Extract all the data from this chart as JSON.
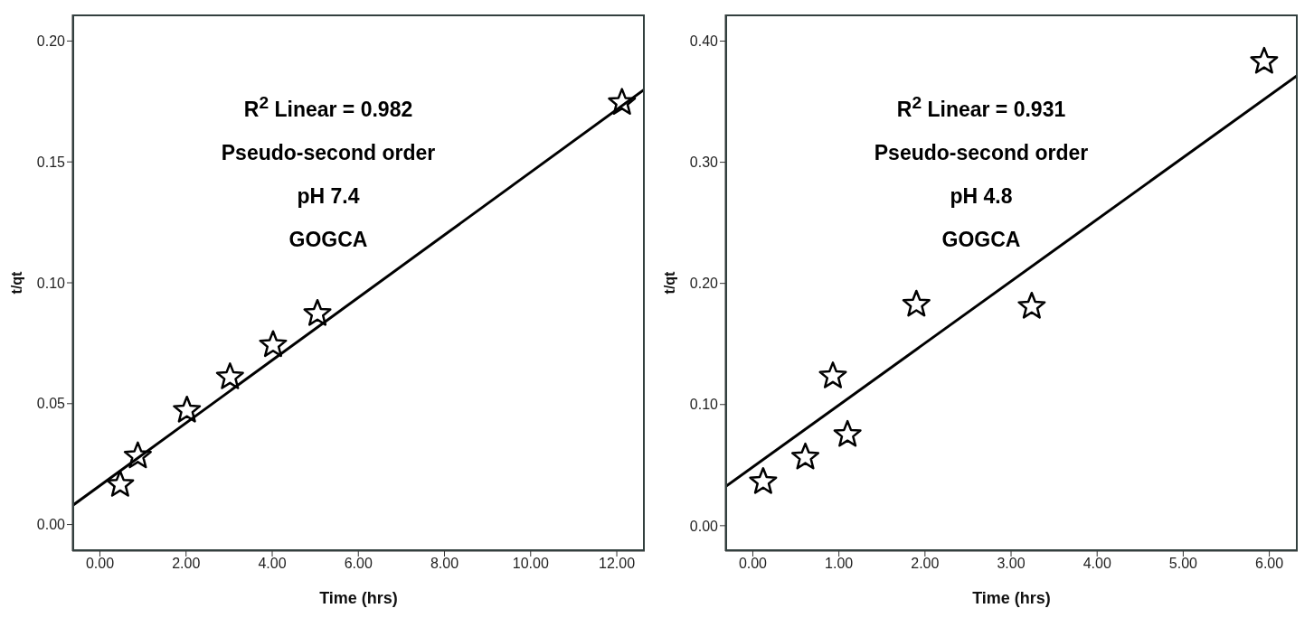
{
  "chart_data": [
    {
      "type": "scatter",
      "xlabel": "Time (hrs)",
      "ylabel": "t/qt",
      "xlim": [
        -0.64,
        12.65
      ],
      "xticks": [
        {
          "value": 0,
          "label": "0.00"
        },
        {
          "value": 2,
          "label": "2.00"
        },
        {
          "value": 4,
          "label": "4.00"
        },
        {
          "value": 6,
          "label": "6.00"
        },
        {
          "value": 8,
          "label": "8.00"
        },
        {
          "value": 10,
          "label": "10.00"
        },
        {
          "value": 12,
          "label": "12.00"
        }
      ],
      "ylim": [
        -0.011,
        0.211
      ],
      "yticks": [
        {
          "value": 0,
          "label": "0.00"
        },
        {
          "value": 0.05,
          "label": "0.05"
        },
        {
          "value": 0.1,
          "label": "0.10"
        },
        {
          "value": 0.15,
          "label": "0.15"
        },
        {
          "value": 0.2,
          "label": "0.20"
        }
      ],
      "annotations": [
        "R$^{2}$ Linear = 0.982",
        "Pseudo-second order",
        "pH 7.4",
        "GOGCA"
      ],
      "series": [
        {
          "type": "scatter",
          "marker": "star",
          "color": "#000000",
          "x": [
            0.47,
            0.88,
            2.02,
            3.02,
            4.02,
            5.05,
            12.12
          ],
          "values": [
            0.0165,
            0.0283,
            0.0472,
            0.061,
            0.0743,
            0.0872,
            0.1745
          ]
        },
        {
          "type": "line",
          "marker": "none",
          "color": "#000000",
          "x": [
            -0.64,
            12.65
          ],
          "values": [
            0.0078,
            0.1801
          ]
        }
      ]
    },
    {
      "type": "scatter",
      "xlabel": "Time (hrs)",
      "ylabel": "t/qt",
      "xlim": [
        -0.32,
        6.33
      ],
      "xticks": [
        {
          "value": 0,
          "label": "0.00"
        },
        {
          "value": 1,
          "label": "1.00"
        },
        {
          "value": 2,
          "label": "2.00"
        },
        {
          "value": 3,
          "label": "3.00"
        },
        {
          "value": 4,
          "label": "4.00"
        },
        {
          "value": 5,
          "label": "5.00"
        },
        {
          "value": 6,
          "label": "6.00"
        }
      ],
      "ylim": [
        -0.021,
        0.422
      ],
      "yticks": [
        {
          "value": 0,
          "label": "0.00"
        },
        {
          "value": 0.1,
          "label": "0.10"
        },
        {
          "value": 0.2,
          "label": "0.20"
        },
        {
          "value": 0.3,
          "label": "0.30"
        },
        {
          "value": 0.4,
          "label": "0.40"
        }
      ],
      "annotations": [
        "R$^{2}$ Linear = 0.931",
        "Pseudo-second order",
        "pH 4.8",
        "GOGCA"
      ],
      "series": [
        {
          "type": "scatter",
          "marker": "star",
          "color": "#000000",
          "x": [
            0.12,
            0.61,
            0.93,
            1.1,
            1.9,
            3.24,
            5.94
          ],
          "values": [
            0.0362,
            0.0565,
            0.1234,
            0.0751,
            0.1826,
            0.1809,
            0.3831
          ]
        },
        {
          "type": "line",
          "marker": "none",
          "color": "#000000",
          "x": [
            -0.32,
            6.33
          ],
          "values": [
            0.0321,
            0.3719
          ]
        }
      ]
    }
  ]
}
